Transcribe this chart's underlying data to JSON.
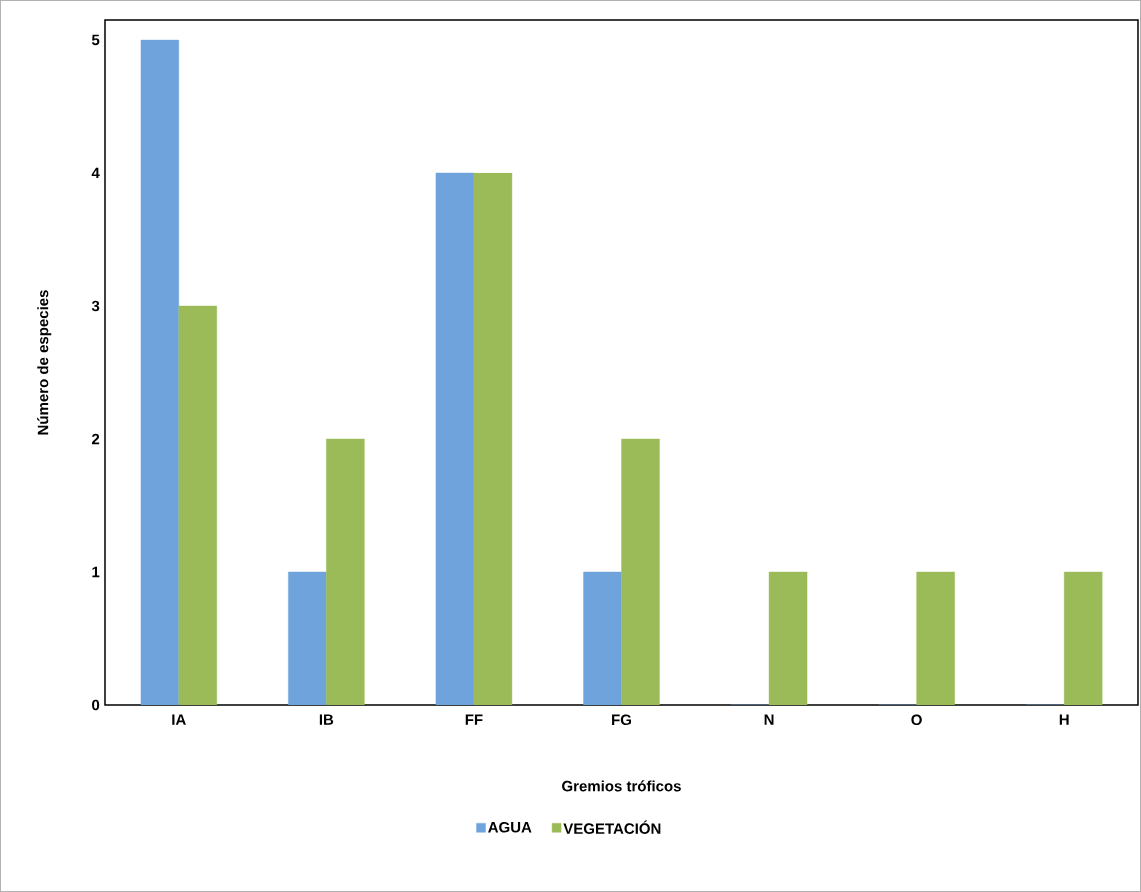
{
  "chart_data": {
    "type": "bar",
    "xlabel": "Gremios tróficos",
    "ylabel": "Número de especies",
    "categories": [
      "IA",
      "IB",
      "FF",
      "FG",
      "N",
      "O",
      "H"
    ],
    "series": [
      {
        "name": "AGUA",
        "color": "#6fa3dc",
        "values": [
          5,
          1,
          4,
          1,
          0,
          0,
          0
        ]
      },
      {
        "name": "VEGETACIÓN",
        "color": "#9bbb59",
        "values": [
          3,
          2,
          4,
          2,
          1,
          1,
          1
        ]
      }
    ],
    "ylim": [
      0,
      5
    ],
    "yticks": [
      0,
      1,
      2,
      3,
      4,
      5
    ],
    "grid": false,
    "legend": "bottom"
  }
}
